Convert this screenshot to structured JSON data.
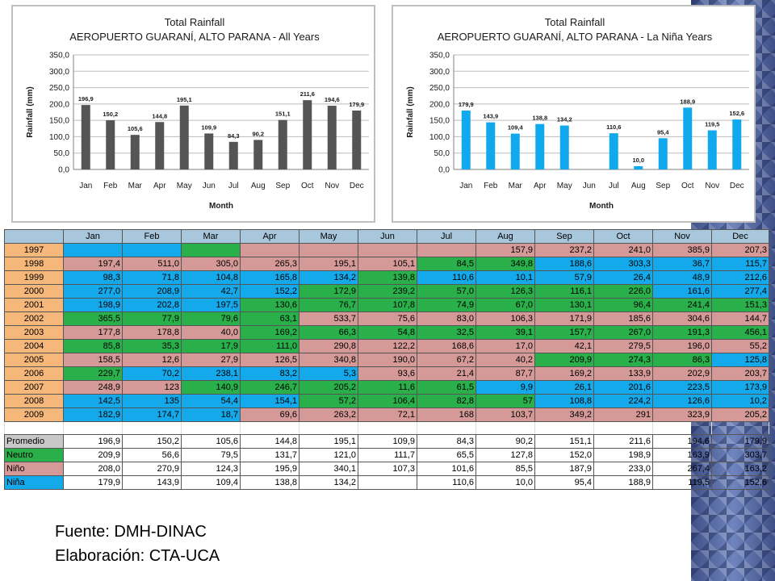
{
  "colors": {
    "green": "#2ab04a",
    "blue": "#13a9ea",
    "pink": "#d59a98",
    "orange": "#f5b77a",
    "gray_bar": "#555555",
    "cyan_bar": "#11a9ee",
    "header": "#a8c6dc"
  },
  "chart_data": [
    {
      "type": "bar",
      "title": "Total Rainfall",
      "subtitle": "AEROPUERTO GUARANÍ, ALTO PARANA - All Years",
      "xlabel": "Month",
      "ylabel": "Rainfall (mm)",
      "ylim": [
        0,
        350
      ],
      "yticks": [
        "0,0",
        "50,0",
        "100,0",
        "150,0",
        "200,0",
        "250,0",
        "300,0",
        "350,0"
      ],
      "categories": [
        "Jan",
        "Feb",
        "Mar",
        "Apr",
        "May",
        "Jun",
        "Jul",
        "Aug",
        "Sep",
        "Oct",
        "Nov",
        "Dec"
      ],
      "values": [
        196.9,
        150.2,
        105.6,
        144.8,
        195.1,
        109.9,
        84.3,
        90.2,
        151.1,
        211.6,
        194.6,
        179.9
      ],
      "labels": [
        "196,9",
        "150,2",
        "105,6",
        "144,8",
        "195,1",
        "109,9",
        "84,3",
        "90,2",
        "151,1",
        "211,6",
        "194,6",
        "179,9"
      ],
      "color": "#555555"
    },
    {
      "type": "bar",
      "title": "Total Rainfall",
      "subtitle": "AEROPUERTO GUARANÍ, ALTO PARANA - La Niña Years",
      "xlabel": "Month",
      "ylabel": "Rainfall (mm)",
      "ylim": [
        0,
        350
      ],
      "yticks": [
        "0,0",
        "50,0",
        "100,0",
        "150,0",
        "200,0",
        "250,0",
        "300,0",
        "350,0"
      ],
      "categories": [
        "Jan",
        "Feb",
        "Mar",
        "Apr",
        "May",
        "Jun",
        "Jul",
        "Aug",
        "Sep",
        "Oct",
        "Nov",
        "Dec"
      ],
      "values": [
        179.9,
        143.9,
        109.4,
        138.8,
        134.2,
        null,
        110.6,
        10.0,
        95.4,
        188.9,
        119.5,
        152.6
      ],
      "labels": [
        "179,9",
        "143,9",
        "109,4",
        "138,8",
        "134,2",
        "",
        "110,6",
        "10,0",
        "95,4",
        "188,9",
        "119,5",
        "152,6"
      ],
      "color": "#11a9ee"
    }
  ],
  "table": {
    "header": [
      "",
      "Jan",
      "Feb",
      "Mar",
      "Apr",
      "May",
      "Jun",
      "Jul",
      "Aug",
      "Sep",
      "Oct",
      "Nov",
      "Dec"
    ],
    "rows": [
      {
        "label": "1997",
        "cells": [
          [
            "",
            "b"
          ],
          [
            "",
            "b"
          ],
          [
            "",
            "g"
          ],
          [
            "",
            "p"
          ],
          [
            "",
            "p"
          ],
          [
            "",
            "p"
          ],
          [
            "",
            "p"
          ],
          [
            "157,9",
            "p"
          ],
          [
            "237,2",
            "p"
          ],
          [
            "241,0",
            "p"
          ],
          [
            "385,9",
            "p"
          ],
          [
            "207,3",
            "p"
          ]
        ]
      },
      {
        "label": "1998",
        "cells": [
          [
            "197,4",
            "p"
          ],
          [
            "511,0",
            "p"
          ],
          [
            "305,0",
            "p"
          ],
          [
            "265,3",
            "p"
          ],
          [
            "195,1",
            "p"
          ],
          [
            "105,1",
            "p"
          ],
          [
            "84,5",
            "g"
          ],
          [
            "349,8",
            "g"
          ],
          [
            "188,6",
            "b"
          ],
          [
            "303,3",
            "b"
          ],
          [
            "36,7",
            "b"
          ],
          [
            "115,7",
            "b"
          ]
        ]
      },
      {
        "label": "1999",
        "cells": [
          [
            "98,3",
            "b"
          ],
          [
            "71,8",
            "b"
          ],
          [
            "104,8",
            "b"
          ],
          [
            "165,8",
            "b"
          ],
          [
            "134,2",
            "b"
          ],
          [
            "139,8",
            "g"
          ],
          [
            "110,6",
            "b"
          ],
          [
            "10,1",
            "b"
          ],
          [
            "57,9",
            "b"
          ],
          [
            "26,4",
            "b"
          ],
          [
            "48,9",
            "b"
          ],
          [
            "212,6",
            "b"
          ]
        ]
      },
      {
        "label": "2000",
        "cells": [
          [
            "277,0",
            "b"
          ],
          [
            "208,9",
            "b"
          ],
          [
            "42,7",
            "b"
          ],
          [
            "152,2",
            "b"
          ],
          [
            "172,9",
            "g"
          ],
          [
            "239,2",
            "g"
          ],
          [
            "57,0",
            "g"
          ],
          [
            "126,3",
            "g"
          ],
          [
            "116,1",
            "g"
          ],
          [
            "226,0",
            "g"
          ],
          [
            "161,6",
            "b"
          ],
          [
            "277,4",
            "b"
          ]
        ]
      },
      {
        "label": "2001",
        "cells": [
          [
            "198,9",
            "b"
          ],
          [
            "202,8",
            "b"
          ],
          [
            "197,5",
            "b"
          ],
          [
            "130,6",
            "g"
          ],
          [
            "76,7",
            "g"
          ],
          [
            "107,8",
            "g"
          ],
          [
            "74,9",
            "g"
          ],
          [
            "67,0",
            "g"
          ],
          [
            "130,1",
            "g"
          ],
          [
            "96,4",
            "g"
          ],
          [
            "241,4",
            "g"
          ],
          [
            "151,3",
            "g"
          ]
        ]
      },
      {
        "label": "2002",
        "cells": [
          [
            "365,5",
            "g"
          ],
          [
            "77,9",
            "g"
          ],
          [
            "79,6",
            "g"
          ],
          [
            "63,1",
            "g"
          ],
          [
            "533,7",
            "p"
          ],
          [
            "75,6",
            "p"
          ],
          [
            "83,0",
            "p"
          ],
          [
            "106,3",
            "p"
          ],
          [
            "171,9",
            "p"
          ],
          [
            "185,6",
            "p"
          ],
          [
            "304,6",
            "p"
          ],
          [
            "144,7",
            "p"
          ]
        ]
      },
      {
        "label": "2003",
        "cells": [
          [
            "177,8",
            "p"
          ],
          [
            "178,8",
            "p"
          ],
          [
            "40,0",
            "p"
          ],
          [
            "169,2",
            "g"
          ],
          [
            "66,3",
            "g"
          ],
          [
            "54,8",
            "g"
          ],
          [
            "32,5",
            "g"
          ],
          [
            "39,1",
            "g"
          ],
          [
            "157,7",
            "g"
          ],
          [
            "267,0",
            "g"
          ],
          [
            "191,3",
            "g"
          ],
          [
            "456,1",
            "g"
          ]
        ]
      },
      {
        "label": "2004",
        "cells": [
          [
            "85,8",
            "g"
          ],
          [
            "35,3",
            "g"
          ],
          [
            "17,9",
            "g"
          ],
          [
            "111,0",
            "g"
          ],
          [
            "290,8",
            "p"
          ],
          [
            "122,2",
            "p"
          ],
          [
            "168,6",
            "p"
          ],
          [
            "17,0",
            "p"
          ],
          [
            "42,1",
            "p"
          ],
          [
            "279,5",
            "p"
          ],
          [
            "196,0",
            "p"
          ],
          [
            "55,2",
            "p"
          ]
        ]
      },
      {
        "label": "2005",
        "cells": [
          [
            "158,5",
            "p"
          ],
          [
            "12,6",
            "p"
          ],
          [
            "27,9",
            "p"
          ],
          [
            "126,5",
            "p"
          ],
          [
            "340,8",
            "p"
          ],
          [
            "190,0",
            "p"
          ],
          [
            "67,2",
            "p"
          ],
          [
            "40,2",
            "p"
          ],
          [
            "209,9",
            "g"
          ],
          [
            "274,3",
            "g"
          ],
          [
            "86,3",
            "g"
          ],
          [
            "125,8",
            "b"
          ]
        ]
      },
      {
        "label": "2006",
        "cells": [
          [
            "229,7",
            "g"
          ],
          [
            "70,2",
            "b"
          ],
          [
            "238,1",
            "b"
          ],
          [
            "83,2",
            "b"
          ],
          [
            "5,3",
            "b"
          ],
          [
            "93,6",
            "p"
          ],
          [
            "21,4",
            "p"
          ],
          [
            "87,7",
            "p"
          ],
          [
            "169,2",
            "p"
          ],
          [
            "133,9",
            "p"
          ],
          [
            "202,9",
            "p"
          ],
          [
            "203,7",
            "p"
          ]
        ]
      },
      {
        "label": "2007",
        "cells": [
          [
            "248,9",
            "p"
          ],
          [
            "123",
            "p"
          ],
          [
            "140,9",
            "g"
          ],
          [
            "246,7",
            "g"
          ],
          [
            "205,2",
            "g"
          ],
          [
            "11,6",
            "g"
          ],
          [
            "61,5",
            "g"
          ],
          [
            "9,9",
            "b"
          ],
          [
            "26,1",
            "b"
          ],
          [
            "201,6",
            "b"
          ],
          [
            "223,5",
            "b"
          ],
          [
            "173,9",
            "b"
          ]
        ]
      },
      {
        "label": "2008",
        "cells": [
          [
            "142,5",
            "b"
          ],
          [
            "135",
            "b"
          ],
          [
            "54,4",
            "b"
          ],
          [
            "154,1",
            "b"
          ],
          [
            "57,2",
            "g"
          ],
          [
            "106,4",
            "g"
          ],
          [
            "82,8",
            "g"
          ],
          [
            "57",
            "g"
          ],
          [
            "108,8",
            "b"
          ],
          [
            "224,2",
            "b"
          ],
          [
            "126,6",
            "b"
          ],
          [
            "10,2",
            "b"
          ]
        ]
      },
      {
        "label": "2009",
        "cells": [
          [
            "182,9",
            "b"
          ],
          [
            "174,7",
            "b"
          ],
          [
            "18,7",
            "b"
          ],
          [
            "69,6",
            "p"
          ],
          [
            "263,2",
            "p"
          ],
          [
            "72,1",
            "p"
          ],
          [
            "168",
            "p"
          ],
          [
            "103,7",
            "p"
          ],
          [
            "349,2",
            "p"
          ],
          [
            "291",
            "p"
          ],
          [
            "323,9",
            "p"
          ],
          [
            "205,2",
            "p"
          ]
        ]
      }
    ],
    "summary": [
      {
        "label": "Promedio",
        "cls": "gr",
        "values": [
          "196,9",
          "150,2",
          "105,6",
          "144,8",
          "195,1",
          "109,9",
          "84,3",
          "90,2",
          "151,1",
          "211,6",
          "194,6",
          "179,9"
        ]
      },
      {
        "label": "Neutro",
        "cls": "g",
        "values": [
          "209,9",
          "56,6",
          "79,5",
          "131,7",
          "121,0",
          "111,7",
          "65,5",
          "127,8",
          "152,0",
          "198,9",
          "163,9",
          "303,7"
        ]
      },
      {
        "label": "Niño",
        "cls": "p",
        "values": [
          "208,0",
          "270,9",
          "124,3",
          "195,9",
          "340,1",
          "107,3",
          "101,6",
          "85,5",
          "187,9",
          "233,0",
          "267,4",
          "163,2"
        ]
      },
      {
        "label": "Niña",
        "cls": "b",
        "values": [
          "179,9",
          "143,9",
          "109,4",
          "138,8",
          "134,2",
          "",
          "110,6",
          "10,0",
          "95,4",
          "188,9",
          "119,5",
          "152,6"
        ]
      }
    ]
  },
  "footer": {
    "source": "Fuente: DMH-DINAC",
    "credit": "Elaboración: CTA-UCA"
  }
}
